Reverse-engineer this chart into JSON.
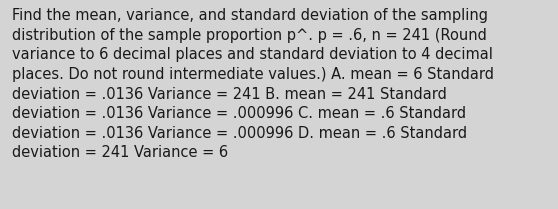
{
  "lines": [
    "Find the mean, variance, and standard deviation of the sampling",
    "distribution of the sample proportion p^. p = .6, n = 241 (Round",
    "variance to 6 decimal places and standard deviation to 4 decimal",
    "places. Do not round intermediate values.) A. mean = 6 Standard",
    "deviation = .0136 Variance = 241 B. mean = 241 Standard",
    "deviation = .0136 Variance = .000996 C. mean = .6 Standard",
    "deviation = .0136 Variance = .000996 D. mean = .6 Standard",
    "deviation = 241 Variance = 6"
  ],
  "background_color": "#d4d4d4",
  "text_color": "#1a1a1a",
  "font_size": 10.5,
  "fig_width": 5.58,
  "fig_height": 2.09,
  "dpi": 100
}
